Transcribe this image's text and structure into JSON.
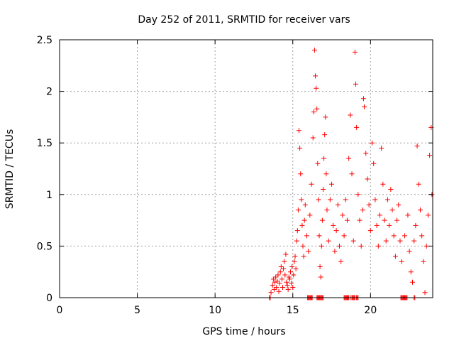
{
  "colors": {
    "series": "#ff0000",
    "axis": "#000000",
    "grid": "#a0a0a0",
    "background": "#ffffff"
  },
  "chart_data": {
    "type": "scatter",
    "title": "Day 252 of 2011, SRMTID for receiver vars",
    "xlabel": "GPS time / hours",
    "ylabel": "SRMTID / TECUs",
    "xlim": [
      0,
      24
    ],
    "ylim": [
      0,
      2.5
    ],
    "grid": true,
    "legend": "none",
    "marker": "+",
    "x_ticks": [
      0,
      5,
      10,
      15,
      20
    ],
    "x_tick_labels": [
      "0",
      "5",
      "10",
      "15",
      "20"
    ],
    "y_ticks": [
      0,
      0.5,
      1,
      1.5,
      2,
      2.5
    ],
    "y_tick_labels": [
      "0",
      "0.5",
      "1",
      "1.5",
      "2",
      "2.5"
    ],
    "series": [
      {
        "name": "SRMTID",
        "points": [
          [
            13.6,
            0.05
          ],
          [
            13.7,
            0.12
          ],
          [
            13.75,
            0.18
          ],
          [
            13.8,
            0.08
          ],
          [
            13.85,
            0.15
          ],
          [
            13.9,
            0.2
          ],
          [
            13.95,
            0.1
          ],
          [
            14.0,
            0.16
          ],
          [
            14.05,
            0.22
          ],
          [
            14.1,
            0.06
          ],
          [
            14.15,
            0.14
          ],
          [
            14.2,
            0.25
          ],
          [
            14.25,
            0.3
          ],
          [
            14.3,
            0.18
          ],
          [
            14.35,
            0.1
          ],
          [
            14.4,
            0.28
          ],
          [
            14.45,
            0.35
          ],
          [
            14.5,
            0.22
          ],
          [
            14.55,
            0.42
          ],
          [
            14.6,
            0.15
          ],
          [
            14.65,
            0.12
          ],
          [
            14.7,
            0.08
          ],
          [
            14.75,
            0.2
          ],
          [
            14.8,
            0.18
          ],
          [
            14.85,
            0.25
          ],
          [
            14.9,
            0.14
          ],
          [
            14.95,
            0.3
          ],
          [
            15.0,
            0.1
          ],
          [
            15.05,
            0.22
          ],
          [
            15.1,
            0.35
          ],
          [
            15.15,
            0.4
          ],
          [
            15.2,
            0.28
          ],
          [
            15.25,
            0.55
          ],
          [
            15.3,
            0.65
          ],
          [
            15.35,
            0.85
          ],
          [
            15.4,
            1.62
          ],
          [
            15.45,
            1.45
          ],
          [
            15.5,
            1.2
          ],
          [
            15.55,
            0.95
          ],
          [
            15.6,
            0.7
          ],
          [
            15.65,
            0.5
          ],
          [
            15.7,
            0.4
          ],
          [
            15.75,
            0.75
          ],
          [
            15.8,
            0.9
          ],
          [
            15.9,
            0.6
          ],
          [
            16.0,
            0.45
          ],
          [
            16.1,
            0.8
          ],
          [
            16.2,
            1.1
          ],
          [
            16.3,
            1.55
          ],
          [
            16.35,
            1.8
          ],
          [
            16.4,
            2.4
          ],
          [
            16.45,
            2.15
          ],
          [
            16.5,
            2.03
          ],
          [
            16.55,
            1.83
          ],
          [
            16.6,
            1.3
          ],
          [
            16.65,
            0.95
          ],
          [
            16.7,
            0.6
          ],
          [
            16.75,
            0.3
          ],
          [
            16.8,
            0.2
          ],
          [
            16.85,
            0.5
          ],
          [
            16.9,
            0.75
          ],
          [
            16.95,
            1.05
          ],
          [
            17.0,
            1.35
          ],
          [
            17.05,
            1.58
          ],
          [
            17.1,
            1.75
          ],
          [
            17.15,
            1.2
          ],
          [
            17.2,
            0.85
          ],
          [
            17.3,
            0.55
          ],
          [
            17.4,
            0.95
          ],
          [
            17.5,
            1.1
          ],
          [
            17.6,
            0.7
          ],
          [
            17.7,
            0.45
          ],
          [
            17.8,
            0.65
          ],
          [
            17.9,
            0.9
          ],
          [
            18.0,
            0.5
          ],
          [
            18.1,
            0.35
          ],
          [
            18.2,
            0.8
          ],
          [
            18.3,
            0.6
          ],
          [
            18.4,
            0.95
          ],
          [
            18.5,
            0.75
          ],
          [
            18.6,
            1.35
          ],
          [
            18.7,
            1.77
          ],
          [
            18.8,
            1.2
          ],
          [
            18.9,
            0.55
          ],
          [
            19.0,
            2.38
          ],
          [
            19.05,
            2.07
          ],
          [
            19.1,
            1.65
          ],
          [
            19.2,
            1.0
          ],
          [
            19.3,
            0.75
          ],
          [
            19.4,
            0.5
          ],
          [
            19.5,
            0.85
          ],
          [
            19.55,
            1.93
          ],
          [
            19.6,
            1.85
          ],
          [
            19.7,
            1.4
          ],
          [
            19.8,
            1.15
          ],
          [
            19.9,
            0.9
          ],
          [
            20.0,
            0.65
          ],
          [
            20.1,
            1.5
          ],
          [
            20.2,
            1.3
          ],
          [
            20.3,
            0.95
          ],
          [
            20.4,
            0.7
          ],
          [
            20.5,
            0.5
          ],
          [
            20.6,
            0.8
          ],
          [
            20.7,
            1.45
          ],
          [
            20.8,
            1.1
          ],
          [
            20.9,
            0.75
          ],
          [
            21.0,
            0.55
          ],
          [
            21.1,
            0.95
          ],
          [
            21.2,
            0.7
          ],
          [
            21.3,
            1.05
          ],
          [
            21.4,
            0.85
          ],
          [
            21.5,
            0.6
          ],
          [
            21.6,
            0.4
          ],
          [
            21.7,
            0.75
          ],
          [
            21.8,
            0.9
          ],
          [
            21.9,
            0.55
          ],
          [
            22.0,
            0.35
          ],
          [
            22.2,
            0.6
          ],
          [
            22.4,
            0.8
          ],
          [
            22.5,
            0.45
          ],
          [
            22.6,
            0.25
          ],
          [
            22.7,
            0.15
          ],
          [
            22.8,
            0.55
          ],
          [
            22.9,
            0.7
          ],
          [
            23.0,
            1.47
          ],
          [
            23.1,
            1.1
          ],
          [
            23.2,
            0.85
          ],
          [
            23.3,
            0.6
          ],
          [
            23.4,
            0.35
          ],
          [
            23.5,
            0.05
          ],
          [
            23.6,
            0.5
          ],
          [
            23.7,
            0.8
          ],
          [
            23.8,
            1.38
          ],
          [
            23.9,
            1.65
          ],
          [
            23.95,
            1.0
          ],
          [
            13.5,
            0.0
          ],
          [
            13.55,
            0.0
          ],
          [
            15.95,
            0.0
          ],
          [
            16.0,
            0.0
          ],
          [
            16.05,
            0.0
          ],
          [
            16.1,
            0.0
          ],
          [
            16.15,
            0.0
          ],
          [
            16.2,
            0.0
          ],
          [
            16.25,
            0.0
          ],
          [
            16.55,
            0.0
          ],
          [
            16.6,
            0.0
          ],
          [
            16.65,
            0.0
          ],
          [
            16.7,
            0.0
          ],
          [
            16.75,
            0.0
          ],
          [
            16.8,
            0.0
          ],
          [
            16.85,
            0.0
          ],
          [
            16.9,
            0.0
          ],
          [
            16.95,
            0.0
          ],
          [
            18.3,
            0.0
          ],
          [
            18.35,
            0.0
          ],
          [
            18.4,
            0.0
          ],
          [
            18.45,
            0.0
          ],
          [
            18.5,
            0.0
          ],
          [
            18.55,
            0.0
          ],
          [
            18.6,
            0.0
          ],
          [
            18.7,
            0.0
          ],
          [
            18.8,
            0.0
          ],
          [
            18.85,
            0.0
          ],
          [
            18.9,
            0.0
          ],
          [
            18.95,
            0.0
          ],
          [
            19.0,
            0.0
          ],
          [
            19.1,
            0.0
          ],
          [
            19.15,
            0.0
          ],
          [
            19.2,
            0.0
          ],
          [
            21.95,
            0.0
          ],
          [
            22.0,
            0.0
          ],
          [
            22.05,
            0.0
          ],
          [
            22.1,
            0.0
          ],
          [
            22.15,
            0.0
          ],
          [
            22.2,
            0.0
          ],
          [
            22.25,
            0.0
          ],
          [
            22.3,
            0.0
          ],
          [
            22.35,
            0.0
          ],
          [
            22.8,
            0.0
          ],
          [
            22.85,
            0.0
          ]
        ]
      }
    ]
  }
}
